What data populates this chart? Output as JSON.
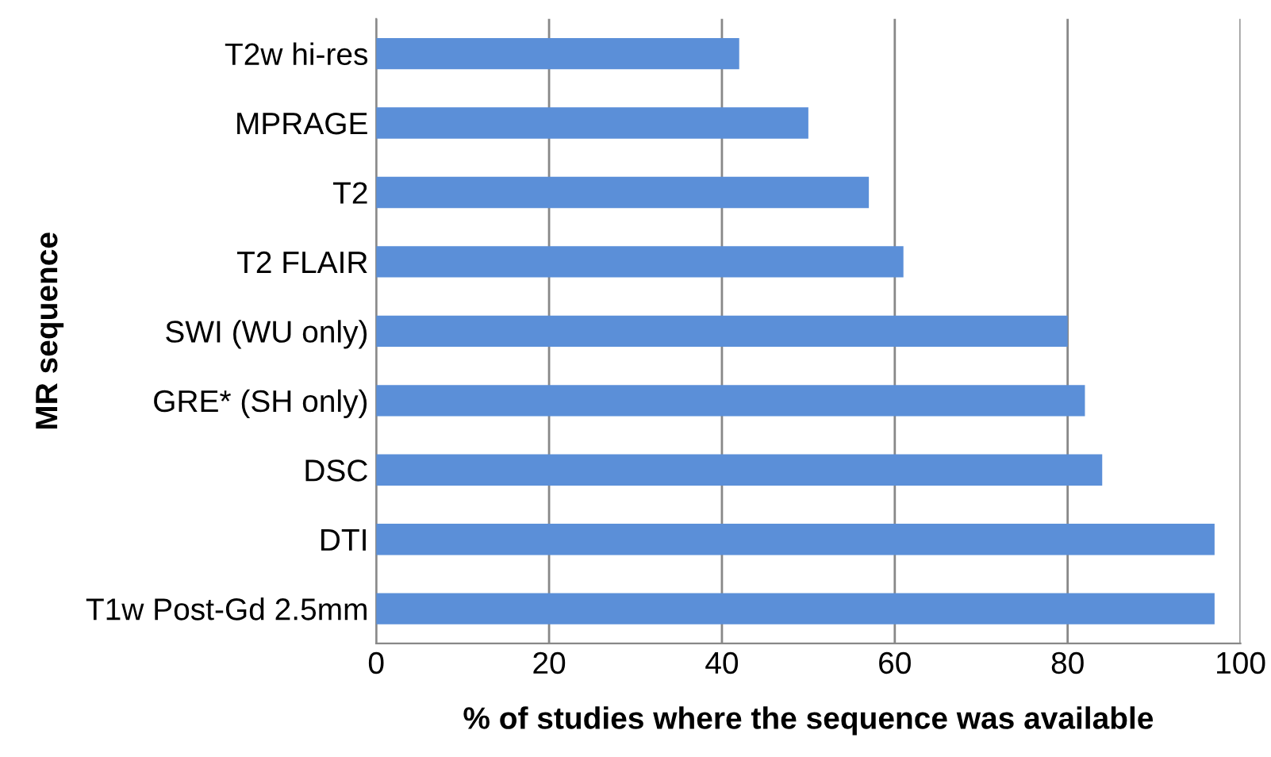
{
  "chart_data": {
    "type": "bar",
    "orientation": "horizontal",
    "xlabel": "% of studies where the sequence was available",
    "ylabel": "MR sequence",
    "categories": [
      "T2w hi-res",
      "MPRAGE",
      "T2",
      "T2 FLAIR",
      "SWI (WU only)",
      "GRE* (SH only)",
      "DSC",
      "DTI",
      "T1w Post-Gd 2.5mm"
    ],
    "values": [
      42,
      50,
      57,
      61,
      80,
      82,
      84,
      97,
      97
    ],
    "color": "#5b8fd8",
    "xlim": [
      0,
      100
    ],
    "xticks": [
      0,
      20,
      40,
      60,
      80,
      100
    ],
    "grid": "x",
    "legend": false
  }
}
